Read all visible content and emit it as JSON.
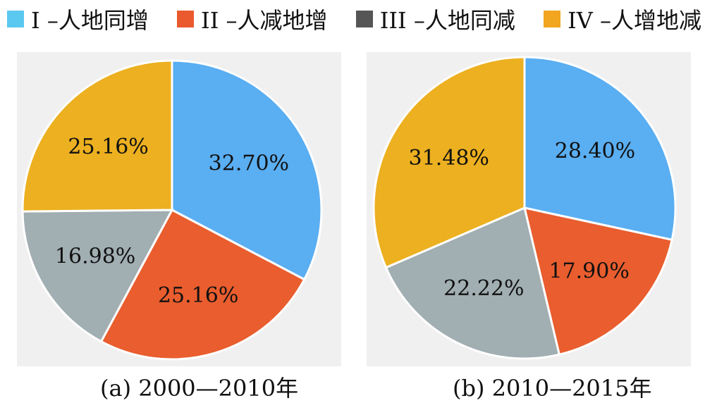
{
  "legend": [
    {
      "label": "I –人地同增",
      "color": "#5bc8ef"
    },
    {
      "label": "II –人减地增",
      "color": "#ea5a2e"
    },
    {
      "label": "III –人地同减",
      "color": "#555555"
    },
    {
      "label": "IV –人增地减",
      "color": "#f2a51f"
    }
  ],
  "chart_data": [
    {
      "type": "pie",
      "caption": "(a) 2000—2010年",
      "categories": [
        "I –人地同增",
        "II –人减地增",
        "III –人地同减",
        "IV –人增地减"
      ],
      "values": [
        32.7,
        25.16,
        16.98,
        25.16
      ],
      "labels": [
        "32.70%",
        "25.16%",
        "16.98%",
        "25.16%"
      ],
      "colors": [
        "#5aaef2",
        "#e95d2e",
        "#a1aeb2",
        "#ecb020"
      ]
    },
    {
      "type": "pie",
      "caption": "(b) 2010—2015年",
      "categories": [
        "I –人地同增",
        "II –人减地增",
        "III –人地同减",
        "IV –人增地减"
      ],
      "values": [
        28.4,
        17.9,
        22.22,
        31.48
      ],
      "labels": [
        "28.40%",
        "17.90%",
        "22.22%",
        "31.48%"
      ],
      "colors": [
        "#5aaef2",
        "#e95d2e",
        "#a1aeb2",
        "#ecb020"
      ]
    }
  ]
}
